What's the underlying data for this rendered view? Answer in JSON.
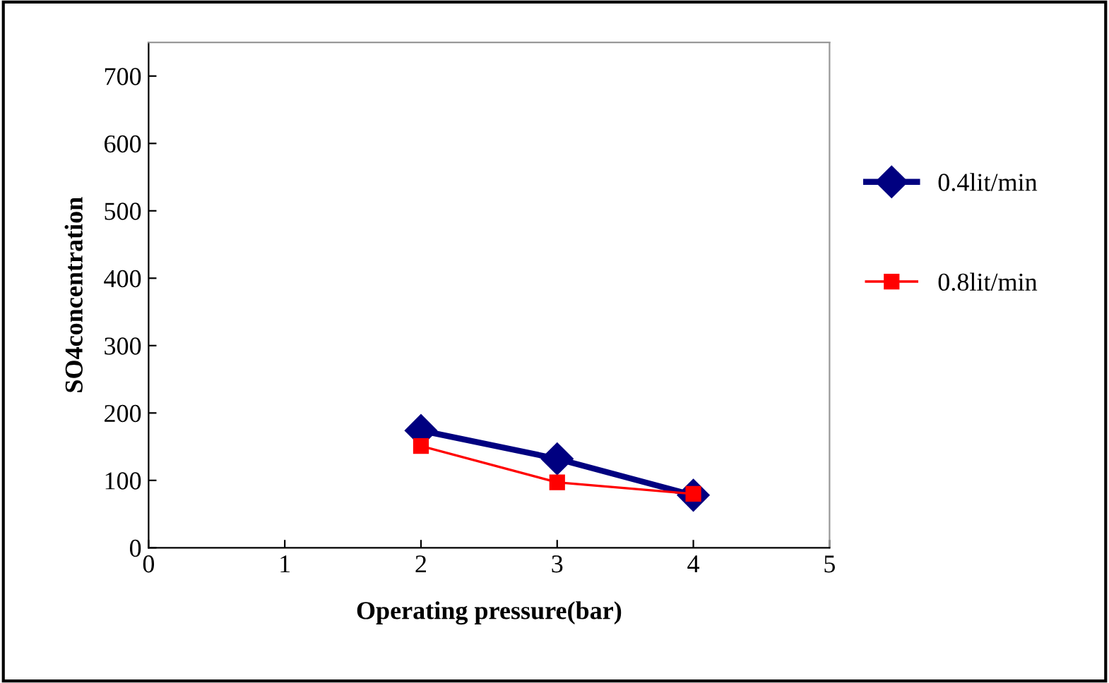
{
  "chart_data": {
    "type": "line",
    "xlabel": "Operating pressure(bar)",
    "ylabel": "SO4concentration",
    "x": [
      2,
      3,
      4
    ],
    "series": [
      {
        "name": "0.4lit/min",
        "color": "#000080",
        "values": [
          174,
          132,
          78
        ],
        "marker": "diamond"
      },
      {
        "name": "0.8lit/min",
        "color": "#ff0000",
        "values": [
          151,
          97,
          80
        ],
        "marker": "square"
      }
    ],
    "xlim": [
      0,
      5
    ],
    "xticks": [
      0,
      1,
      2,
      3,
      4,
      5
    ],
    "ylim": [
      0,
      750
    ],
    "yticks": [
      0,
      100,
      200,
      300,
      400,
      500,
      600,
      700
    ],
    "grid": false,
    "legend": "right",
    "line_style": "solid"
  }
}
